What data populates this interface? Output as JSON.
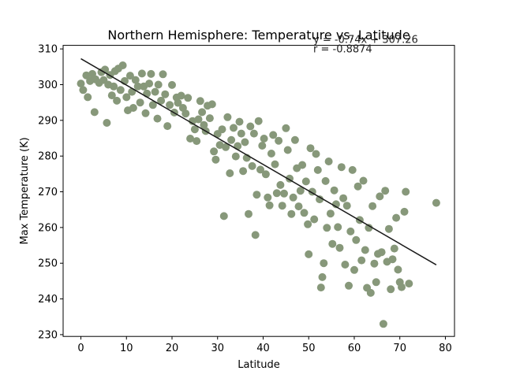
{
  "chart_data": {
    "type": "scatter",
    "title": "Northern Hemisphere: Temperature vs. Latitude",
    "xlabel": "Latitude",
    "ylabel": "Max Temperature (K)",
    "xlim": [
      -3.9,
      82
    ],
    "ylim": [
      229.5,
      311
    ],
    "xticks": [
      0,
      10,
      20,
      30,
      40,
      50,
      60,
      70,
      80
    ],
    "yticks": [
      230,
      240,
      250,
      260,
      270,
      280,
      290,
      300,
      310
    ],
    "grid": false,
    "legend": "none",
    "annotations": [
      {
        "text": "y = -0.74x + 307.26",
        "x": 51,
        "y": 311.7
      },
      {
        "text": "r = -0.8874",
        "x": 51,
        "y": 309.0
      }
    ],
    "colors": {
      "points": "#87987a",
      "regression_line": "#1a1a1a",
      "axis": "#000000"
    },
    "regression": {
      "slope": -0.74,
      "intercept": 307.26,
      "x_range": [
        0,
        78
      ]
    },
    "series": [
      {
        "points": [
          [
            0,
            300.3
          ],
          [
            0.5,
            298.5
          ],
          [
            1.2,
            302.6
          ],
          [
            1.5,
            296.5
          ],
          [
            2,
            301
          ],
          [
            2.5,
            303
          ],
          [
            3,
            292.3
          ],
          [
            3.2,
            301.5
          ],
          [
            4,
            300.5
          ],
          [
            4.5,
            303.5
          ],
          [
            5,
            301.3
          ],
          [
            5.3,
            304.2
          ],
          [
            5.7,
            289.3
          ],
          [
            6,
            300
          ],
          [
            6.4,
            302.7
          ],
          [
            6.8,
            297
          ],
          [
            7.2,
            299.5
          ],
          [
            7.5,
            303.8
          ],
          [
            7.9,
            295.5
          ],
          [
            8.2,
            304.5
          ],
          [
            8.7,
            298.5
          ],
          [
            9.2,
            305.4
          ],
          [
            9.6,
            301
          ],
          [
            10,
            296.5
          ],
          [
            10.3,
            292.8
          ],
          [
            10.8,
            302.5
          ],
          [
            11.2,
            298
          ],
          [
            11.5,
            293.5
          ],
          [
            12,
            301.3
          ],
          [
            12.5,
            299.5
          ],
          [
            13,
            295
          ],
          [
            13.4,
            303.1
          ],
          [
            13.8,
            299.5
          ],
          [
            14.2,
            292
          ],
          [
            14.5,
            297.5
          ],
          [
            15,
            300.3
          ],
          [
            15.4,
            303
          ],
          [
            15.8,
            294.3
          ],
          [
            16.3,
            298
          ],
          [
            16.8,
            290.5
          ],
          [
            17,
            300
          ],
          [
            17.6,
            295.5
          ],
          [
            18,
            302.9
          ],
          [
            18.5,
            297.3
          ],
          [
            19,
            288.4
          ],
          [
            19.5,
            294.3
          ],
          [
            20,
            299.9
          ],
          [
            20.5,
            292.2
          ],
          [
            21,
            296.4
          ],
          [
            21.3,
            294.9
          ],
          [
            22,
            296.9
          ],
          [
            22.4,
            293.5
          ],
          [
            23,
            291.9
          ],
          [
            23.5,
            296.3
          ],
          [
            24,
            284.9
          ],
          [
            24.5,
            289.8
          ],
          [
            25,
            287.5
          ],
          [
            25.4,
            284.2
          ],
          [
            25.8,
            290.3
          ],
          [
            26.2,
            295.4
          ],
          [
            26.6,
            292.3
          ],
          [
            27,
            288.7
          ],
          [
            27.4,
            287
          ],
          [
            27.8,
            294.1
          ],
          [
            28.3,
            290.6
          ],
          [
            28.8,
            294.5
          ],
          [
            29.2,
            281.3
          ],
          [
            29.6,
            279
          ],
          [
            30,
            286.2
          ],
          [
            30.5,
            283.1
          ],
          [
            31,
            287.5
          ],
          [
            31.4,
            263.2
          ],
          [
            31.8,
            282.5
          ],
          [
            32.2,
            290.9
          ],
          [
            32.7,
            275.2
          ],
          [
            33,
            284.5
          ],
          [
            33.5,
            287.9
          ],
          [
            34,
            279.9
          ],
          [
            34.4,
            282.8
          ],
          [
            34.8,
            289.6
          ],
          [
            35.2,
            286.3
          ],
          [
            35.6,
            275.8
          ],
          [
            36,
            283.9
          ],
          [
            36.4,
            279.5
          ],
          [
            36.8,
            263.8
          ],
          [
            37.2,
            288.3
          ],
          [
            37.6,
            277.2
          ],
          [
            38,
            286.3
          ],
          [
            38.3,
            257.9
          ],
          [
            38.6,
            269.2
          ],
          [
            39,
            289.8
          ],
          [
            39.4,
            276.2
          ],
          [
            39.8,
            282.9
          ],
          [
            40.2,
            284.9
          ],
          [
            40.6,
            274.9
          ],
          [
            41,
            268.4
          ],
          [
            41.4,
            266.2
          ],
          [
            41.8,
            280.7
          ],
          [
            42.2,
            285.9
          ],
          [
            42.6,
            277.7
          ],
          [
            43,
            269.6
          ],
          [
            43.4,
            284.3
          ],
          [
            43.8,
            271.9
          ],
          [
            44.2,
            266.1
          ],
          [
            44.6,
            269.5
          ],
          [
            45,
            287.8
          ],
          [
            45.4,
            281.7
          ],
          [
            45.8,
            273.7
          ],
          [
            46.2,
            263.8
          ],
          [
            46.6,
            268.4
          ],
          [
            47,
            284.5
          ],
          [
            47.4,
            276.6
          ],
          [
            47.8,
            265.9
          ],
          [
            48.2,
            270.3
          ],
          [
            48.6,
            277.5
          ],
          [
            49,
            264.1
          ],
          [
            49.4,
            272.9
          ],
          [
            49.8,
            260.9
          ],
          [
            50,
            252.5
          ],
          [
            50.4,
            282.2
          ],
          [
            50.8,
            270
          ],
          [
            51.2,
            262.3
          ],
          [
            51.6,
            280.6
          ],
          [
            52,
            276.1
          ],
          [
            52.4,
            267.9
          ],
          [
            52.7,
            243.2
          ],
          [
            53,
            246.1
          ],
          [
            53.3,
            250
          ],
          [
            53.7,
            273
          ],
          [
            54,
            259.9
          ],
          [
            54.4,
            278.5
          ],
          [
            54.8,
            263.9
          ],
          [
            55.2,
            255.4
          ],
          [
            55.6,
            270.4
          ],
          [
            56,
            266.5
          ],
          [
            56.4,
            260.1
          ],
          [
            56.8,
            254.3
          ],
          [
            57.2,
            276.9
          ],
          [
            57.6,
            268.2
          ],
          [
            58,
            249.6
          ],
          [
            58.4,
            266.1
          ],
          [
            58.8,
            243.7
          ],
          [
            59.2,
            258.9
          ],
          [
            59.6,
            276.1
          ],
          [
            60,
            248.1
          ],
          [
            60.4,
            256.5
          ],
          [
            60.8,
            271.5
          ],
          [
            61.2,
            262.1
          ],
          [
            61.6,
            250.8
          ],
          [
            62,
            273.1
          ],
          [
            62.4,
            253.7
          ],
          [
            62.8,
            243.1
          ],
          [
            63.2,
            259.9
          ],
          [
            63.6,
            241.7
          ],
          [
            64,
            266
          ],
          [
            64.4,
            249.9
          ],
          [
            64.8,
            244.7
          ],
          [
            65.2,
            252.6
          ],
          [
            65.6,
            268.7
          ],
          [
            66,
            253.1
          ],
          [
            66.4,
            233
          ],
          [
            66.8,
            270.3
          ],
          [
            67.2,
            250.4
          ],
          [
            67.6,
            259.6
          ],
          [
            68,
            242.7
          ],
          [
            68.4,
            251.1
          ],
          [
            68.8,
            254.1
          ],
          [
            69.2,
            262.7
          ],
          [
            69.6,
            248.2
          ],
          [
            70,
            244.7
          ],
          [
            70.4,
            243.3
          ],
          [
            71,
            264.4
          ],
          [
            71.3,
            270
          ],
          [
            72,
            244.3
          ],
          [
            78,
            266.9
          ]
        ]
      }
    ]
  }
}
